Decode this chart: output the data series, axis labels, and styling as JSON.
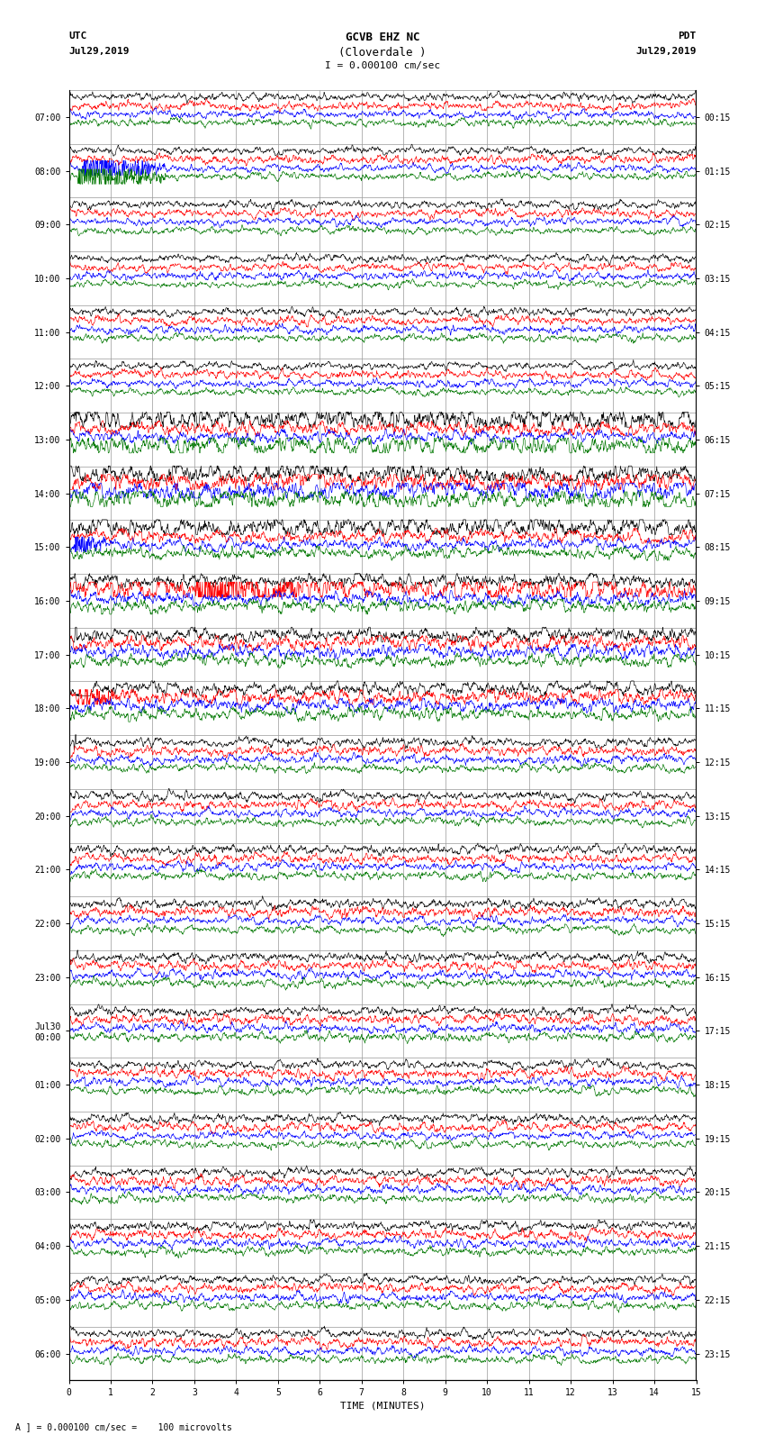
{
  "title_line1": "GCVB EHZ NC",
  "title_line2": "(Cloverdale )",
  "title_line3": "I = 0.000100 cm/sec",
  "label_utc": "UTC",
  "label_pdt": "PDT",
  "date_left": "Jul29,2019",
  "date_right": "Jul29,2019",
  "xlabel": "TIME (MINUTES)",
  "footnote": "A ] = 0.000100 cm/sec =    100 microvolts",
  "bg_color": "#ffffff",
  "trace_colors": [
    "#000000",
    "#ff0000",
    "#0000ff",
    "#007700"
  ],
  "n_rows": 24,
  "row_labels_left": [
    "07:00",
    "08:00",
    "09:00",
    "10:00",
    "11:00",
    "12:00",
    "13:00",
    "14:00",
    "15:00",
    "16:00",
    "17:00",
    "18:00",
    "19:00",
    "20:00",
    "21:00",
    "22:00",
    "23:00",
    "Jul30\n00:00",
    "01:00",
    "02:00",
    "03:00",
    "04:00",
    "05:00",
    "06:00"
  ],
  "row_labels_right": [
    "00:15",
    "01:15",
    "02:15",
    "03:15",
    "04:15",
    "05:15",
    "06:15",
    "07:15",
    "08:15",
    "09:15",
    "10:15",
    "11:15",
    "12:15",
    "13:15",
    "14:15",
    "15:15",
    "16:15",
    "17:15",
    "18:15",
    "19:15",
    "20:15",
    "21:15",
    "22:15",
    "23:15"
  ],
  "xmin": 0,
  "xmax": 15,
  "xticks": [
    0,
    1,
    2,
    3,
    4,
    5,
    6,
    7,
    8,
    9,
    10,
    11,
    12,
    13,
    14,
    15
  ]
}
